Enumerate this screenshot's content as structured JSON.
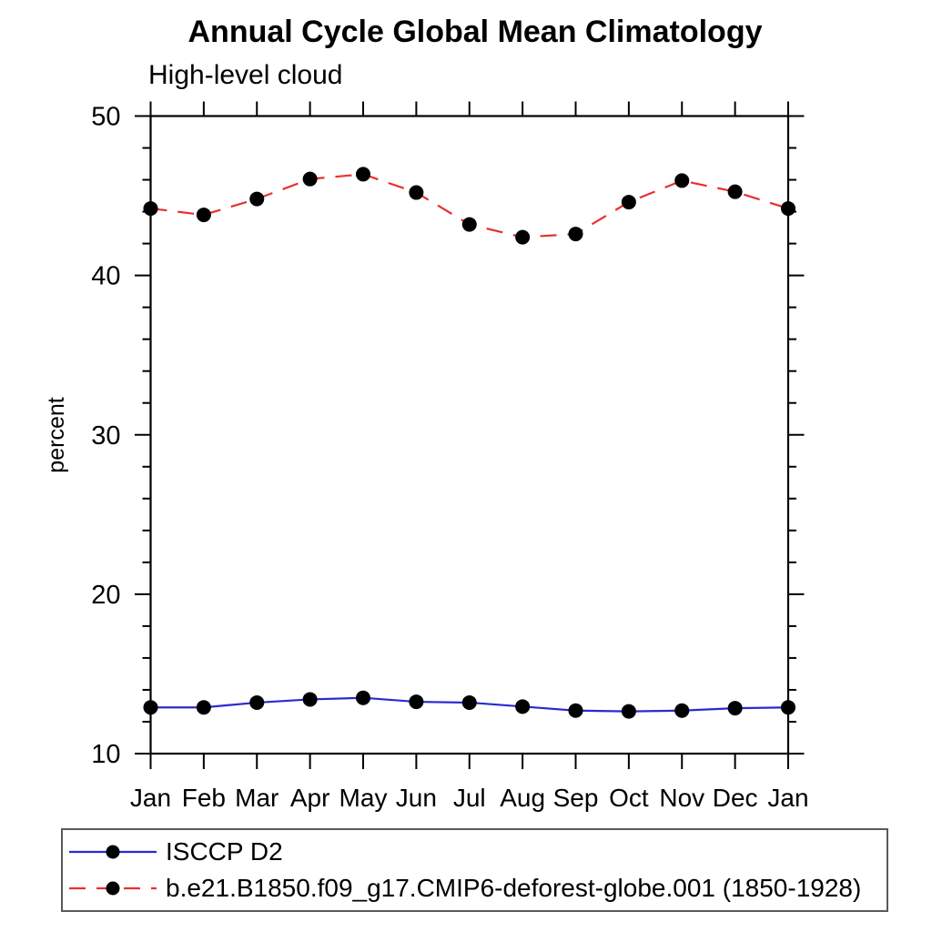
{
  "chart_data": {
    "type": "line",
    "title": "Annual Cycle Global Mean Climatology",
    "subtitle": "High-level cloud",
    "ylabel": "percent",
    "xlabel": "",
    "categories": [
      "Jan",
      "Feb",
      "Mar",
      "Apr",
      "May",
      "Jun",
      "Jul",
      "Aug",
      "Sep",
      "Oct",
      "Nov",
      "Dec",
      "Jan"
    ],
    "ylim": [
      10,
      50
    ],
    "y_major_ticks": [
      10,
      20,
      30,
      40,
      50
    ],
    "y_minor_step": 2,
    "grid": false,
    "axis_color": "#000000",
    "marker_color": "#000000",
    "legend_position": "bottom-left-box",
    "series": [
      {
        "name": "ISCCP D2",
        "color": "#2a2ad2",
        "line_style": "solid",
        "marker": "filled-circle",
        "values": [
          12.9,
          12.9,
          13.2,
          13.4,
          13.5,
          13.25,
          13.2,
          12.95,
          12.7,
          12.65,
          12.7,
          12.85,
          12.9
        ]
      },
      {
        "name": "b.e21.B1850.f09_g17.CMIP6-deforest-globe.001 (1850-1928)",
        "color": "#e83030",
        "line_style": "dashed",
        "marker": "filled-circle",
        "values": [
          44.2,
          43.8,
          44.8,
          46.05,
          46.35,
          45.2,
          43.2,
          42.4,
          42.6,
          44.6,
          45.95,
          45.25,
          44.2
        ]
      }
    ]
  }
}
